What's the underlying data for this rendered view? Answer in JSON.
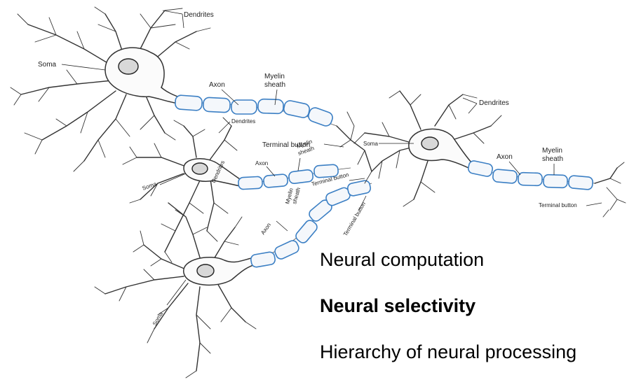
{
  "labels": {
    "dendrites_1": "Dendrites",
    "soma_1": "Soma",
    "axon_1": "Axon",
    "myelin_1": "Myelin\nsheath",
    "dendrites_2": "Dendrites",
    "dendrites_3": "Dendrites",
    "terminal_1": "Terminal button",
    "soma_2": "Soma",
    "axon_2": "Axon",
    "myelin_2": "Myelin\nsheath",
    "terminal_2": "Terminal button",
    "soma_3": "Soma",
    "axon_3": "Axon",
    "myelin_3": "Myelin\nsheath",
    "terminal_3": "Terminal button",
    "myelin_4": "Myelin\nsheath",
    "terminal_4": "Terminal button",
    "axon_4": "Axon",
    "soma_4": "Soma"
  },
  "topics": {
    "item1": "Neural computation",
    "item2": "Neural selectivity",
    "item3": "Hierarchy of neural processing"
  },
  "colors": {
    "myelin_outline": "#3b7fc4"
  }
}
